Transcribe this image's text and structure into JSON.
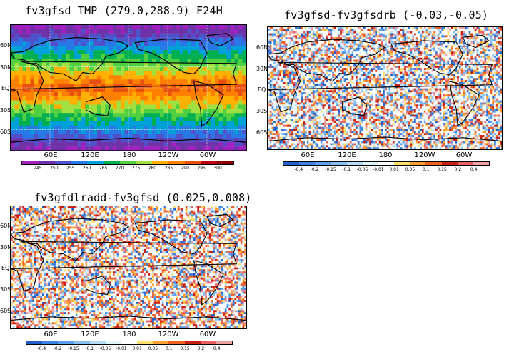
{
  "panels": [
    {
      "id": "tmp",
      "title": "fv3gfsd TMP (279.0,288.9) F24H",
      "lat_labels": [
        "60N",
        "30N",
        "EQ",
        "30S",
        "60S"
      ],
      "lon_labels": [
        "60E",
        "120E",
        "180",
        "120W",
        "60W"
      ],
      "colorbar_labels": [
        "245",
        "250",
        "255",
        "260",
        "265",
        "270",
        "275",
        "280",
        "285",
        "290",
        "295",
        "300"
      ],
      "colorbar_colors": [
        "#a020c0",
        "#7030a8",
        "#5050c8",
        "#2878e8",
        "#00a0d8",
        "#00b050",
        "#50d040",
        "#a0e040",
        "#ffb000",
        "#ff8000",
        "#e85010",
        "#c00010",
        "#900000"
      ]
    },
    {
      "id": "drb",
      "title": "fv3gfsd-fv3gfsdrb (-0.03,-0.05)",
      "lat_labels": [
        "60N",
        "30N",
        "EQ",
        "30S",
        "60S"
      ],
      "lon_labels": [
        "60E",
        "120E",
        "180",
        "120W",
        "60W"
      ],
      "colorbar_labels": [
        "-0.4",
        "-0.2",
        "-0.15",
        "-0.1",
        "-0.05",
        "-0.01",
        "0.01",
        "0.05",
        "0.1",
        "0.15",
        "0.2",
        "0.4"
      ],
      "colorbar_colors": [
        "#2060c8",
        "#3c82e0",
        "#5aa0f0",
        "#86c0f0",
        "#b4dcf8",
        "#e0f4fc",
        "#ffffff",
        "#ffe070",
        "#ffa030",
        "#f06020",
        "#c82010",
        "#e86060",
        "#f0a0a0"
      ]
    },
    {
      "id": "lradd",
      "title": "fv3gfdlradd-fv3gfsd (0.025,0.008)",
      "lat_labels": [
        "60N",
        "30N",
        "EQ",
        "30S",
        "60S"
      ],
      "lon_labels": [
        "60E",
        "120E",
        "180",
        "120W",
        "60W"
      ],
      "colorbar_labels": [
        "-0.4",
        "-0.2",
        "-0.15",
        "-0.1",
        "-0.05",
        "-0.01",
        "0.01",
        "0.05",
        "0.1",
        "0.15",
        "0.2",
        "0.4"
      ],
      "colorbar_colors": [
        "#2060c8",
        "#3c82e0",
        "#5aa0f0",
        "#86c0f0",
        "#b4dcf8",
        "#e0f4fc",
        "#ffffff",
        "#ffe070",
        "#ffa030",
        "#f06020",
        "#c82010",
        "#e86060",
        "#f0a0a0"
      ]
    }
  ]
}
